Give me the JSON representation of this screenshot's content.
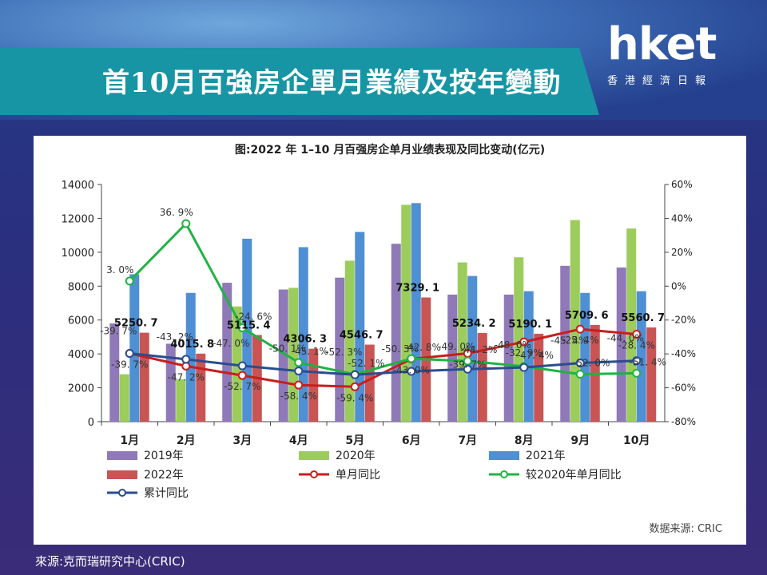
{
  "header": {
    "title": "首10月百強房企單月業績及按年變動",
    "logo_main": "hket",
    "logo_sub": "香港經濟日報"
  },
  "footer": {
    "source": "來源:克而瑞研究中心(CRIC)"
  },
  "colors": {
    "series_2019": "#8f79b8",
    "series_2020": "#9ccc5b",
    "series_2021": "#4f8fd4",
    "series_2022": "#c95454",
    "line_monthly": "#c81e1e",
    "line_vs2020": "#1fb344",
    "line_cumulative": "#2a4d8f"
  },
  "chart_data": {
    "type": "bar",
    "title": "图:2022 年 1–10 月百强房企单月业绩表现及同比变动(亿元)",
    "source_note": "数据来源: CRIC",
    "categories": [
      "1月",
      "2月",
      "3月",
      "4月",
      "5月",
      "6月",
      "7月",
      "8月",
      "9月",
      "10月"
    ],
    "ylim_left": [
      0,
      14000
    ],
    "yticks_left": [
      "0",
      "2000",
      "4000",
      "6000",
      "8000",
      "10000",
      "12000",
      "14000"
    ],
    "ylim_right": [
      -80,
      60
    ],
    "yticks_right": [
      "-80%",
      "-60%",
      "-40%",
      "-20%",
      "0%",
      "20%",
      "40%",
      "60%"
    ],
    "legend": [
      "2019年",
      "2020年",
      "2021年",
      "2022年",
      "单月同比",
      "较2020年单月同比",
      "累计同比"
    ],
    "series": [
      {
        "name": "2019年",
        "kind": "bar",
        "values": [
          5800,
          4600,
          8200,
          7800,
          8500,
          10500,
          7500,
          7500,
          9200,
          9100
        ]
      },
      {
        "name": "2020年",
        "kind": "bar",
        "values": [
          2800,
          2500,
          6800,
          7900,
          9500,
          12800,
          9400,
          9700,
          11900,
          11400
        ]
      },
      {
        "name": "2021年",
        "kind": "bar",
        "values": [
          8700,
          7600,
          10800,
          10300,
          11200,
          12900,
          8600,
          7700,
          7600,
          7700
        ]
      },
      {
        "name": "2022年",
        "kind": "bar",
        "values": [
          5250.7,
          4015.8,
          5115.4,
          4306.3,
          4546.7,
          7329.1,
          5234.2,
          5190.1,
          5709.6,
          5560.7
        ],
        "labels": [
          "5250. 7",
          "4015. 8",
          "5115. 4",
          "4306. 3",
          "4546. 7",
          "7329. 1",
          "5234. 2",
          "5190. 1",
          "5709. 6",
          "5560. 7"
        ]
      },
      {
        "name": "单月同比",
        "kind": "line",
        "values": [
          -39.7,
          -47.2,
          -52.7,
          -58.4,
          -59.4,
          -43.0,
          -39.7,
          -32.9,
          -25.4,
          -28.4
        ],
        "labels": [
          "-39. 7%",
          "-47. 2%",
          "-52. 7%",
          "-58. 4%",
          "-59. 4%",
          "-43. 0%",
          "-39. 7%",
          "-32. 9%",
          "-25. 4%",
          "-28. 4%"
        ]
      },
      {
        "name": "较2020年单月同比",
        "kind": "line",
        "values": [
          3.0,
          36.9,
          -24.6,
          -45.1,
          -52.1,
          -42.8,
          -44.2,
          -47.4,
          -52.0,
          -51.4
        ],
        "labels": [
          "3. 0%",
          "36. 9%",
          "-24. 6%",
          "-45. 1%",
          "-52. 1%",
          "-42. 8%",
          "-44. 2%",
          "-47. 4%",
          "-52. 0%",
          "-51. 4%"
        ]
      },
      {
        "name": "累计同比",
        "kind": "line",
        "values": [
          -39.7,
          -43.2,
          -47.0,
          -50.1,
          -52.3,
          -50.3,
          -49.0,
          -48.0,
          -45.4,
          -44.0
        ],
        "labels": [
          "-39. 7%",
          "-43. 2%",
          "-47. 0%",
          "-50. 1%",
          "-52. 3%",
          "-50. 3%",
          "-49. 0%",
          "-48. 0%",
          "-45. 4%",
          "-44. 0%"
        ]
      }
    ]
  }
}
